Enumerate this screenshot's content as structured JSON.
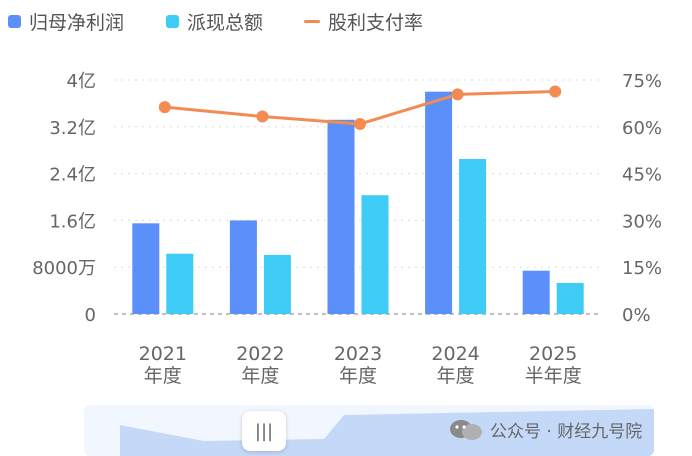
{
  "legend": [
    {
      "label": "归母净利润",
      "color": "#5b8ff9",
      "shape": "square"
    },
    {
      "label": "派现总额",
      "color": "#3ecbf5",
      "shape": "square"
    },
    {
      "label": "股利支付率",
      "color": "#f28c52",
      "shape": "line"
    }
  ],
  "chart_data": {
    "type": "bar",
    "categories": [
      [
        "2021",
        "年度"
      ],
      [
        "2022",
        "年度"
      ],
      [
        "2023",
        "年度"
      ],
      [
        "2024",
        "年度"
      ],
      [
        "2025",
        "半年度"
      ]
    ],
    "series": [
      {
        "name": "归母净利润",
        "type": "bar",
        "axis": "left",
        "color": "#5b8ff9",
        "values": [
          1.55,
          1.6,
          3.32,
          3.8,
          0.74
        ]
      },
      {
        "name": "派现总额",
        "type": "bar",
        "axis": "left",
        "color": "#3ecbf5",
        "values": [
          1.03,
          1.01,
          2.03,
          2.65,
          0.53
        ]
      },
      {
        "name": "股利支付率",
        "type": "line",
        "axis": "right",
        "color": "#f28c52",
        "values": [
          66.3,
          63.3,
          60.9,
          70.4,
          71.3
        ]
      }
    ],
    "left_axis": {
      "ylim": [
        0,
        4
      ],
      "ticks": [
        0,
        0.8,
        1.6,
        2.4,
        3.2,
        4
      ],
      "tick_labels": [
        "0",
        "8000万",
        "1.6亿",
        "2.4亿",
        "3.2亿",
        "4亿"
      ],
      "unit": "亿"
    },
    "right_axis": {
      "ylim": [
        0,
        75
      ],
      "ticks": [
        0,
        15,
        30,
        45,
        60,
        75
      ],
      "tick_labels": [
        "0%",
        "15%",
        "30%",
        "45%",
        "60%",
        "75%"
      ]
    },
    "grid": true,
    "legend_position": "top-left"
  },
  "slider": {
    "handle_icon": "grip-icon",
    "handle_text": "|||"
  },
  "watermark": {
    "text": "公众号 · 财经九号院",
    "icon": "wechat-icon"
  }
}
